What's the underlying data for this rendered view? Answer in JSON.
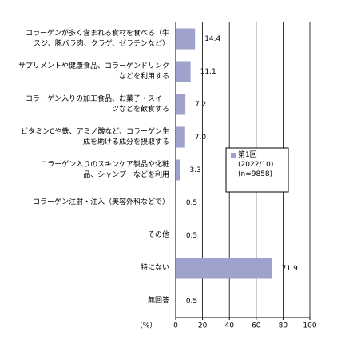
{
  "chart_data": {
    "type": "hbar",
    "categories": [
      "コラーゲンが多く含まれる食材を食べる（牛\nスジ、豚バラ肉、クラゲ、ゼラチンなど）",
      "サプリメントや健康食品、コラーゲンドリンク\nなどを利用する",
      "コラーゲン入りの加工食品、お菓子・スイー\nツなどを飲食する",
      "ビタミンCや鉄、アミノ酸など、コラーゲン生\n成を助ける成分を摂取する",
      "コラーゲン入りのスキンケア製品や化粧\n品、シャンプーなどを利用",
      "コラーゲン注射・注入（美容外科などで）",
      "その他",
      "特にない",
      "無回答"
    ],
    "series": [
      {
        "name": "第1回\n(2022/10)\n(n=9858)",
        "color": "#9ea2cc",
        "values": [
          14.4,
          11.1,
          7.2,
          7.0,
          3.3,
          0.5,
          0.5,
          71.9,
          0.5
        ],
        "value_labels": [
          "14.4",
          "11.1",
          "7.2",
          "7.0",
          "3.3",
          "0.5",
          "0.5",
          "71.9",
          "0.5"
        ]
      }
    ],
    "x_label": "（%）",
    "xlim": [
      0,
      100
    ],
    "xticks": [
      0,
      20,
      40,
      60,
      80,
      100
    ],
    "grid": true
  }
}
